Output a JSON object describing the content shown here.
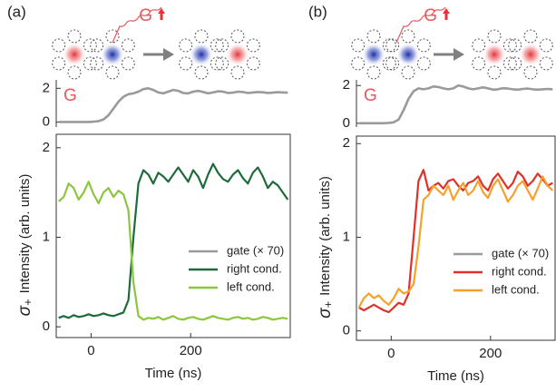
{
  "chart_data": [
    {
      "type": "line",
      "label": "(a)",
      "annotation": "G",
      "schematic_label": "G",
      "x": [
        -65,
        -55,
        -45,
        -35,
        -25,
        -15,
        -5,
        5,
        15,
        25,
        35,
        45,
        55,
        65,
        75,
        85,
        95,
        105,
        115,
        125,
        135,
        145,
        155,
        165,
        175,
        185,
        195,
        205,
        215,
        225,
        235,
        245,
        255,
        265,
        275,
        285,
        295,
        305,
        315,
        325,
        335,
        345,
        355,
        365,
        375,
        385,
        395
      ],
      "xlim": [
        -70,
        400
      ],
      "ylim": [
        -0.3,
        2.5
      ],
      "yticks": [
        0,
        2
      ],
      "series": [
        {
          "name": "gate (× 70)",
          "color": "#9a9a9a",
          "values": [
            0,
            0,
            0,
            0,
            0,
            0,
            0,
            0.02,
            0.05,
            0.15,
            0.4,
            0.8,
            1.2,
            1.5,
            1.65,
            1.7,
            1.8,
            1.95,
            2.0,
            1.9,
            1.75,
            1.7,
            1.8,
            1.9,
            1.85,
            1.72,
            1.7,
            1.8,
            1.85,
            1.78,
            1.7,
            1.75,
            1.82,
            1.8,
            1.72,
            1.74,
            1.8,
            1.78,
            1.72,
            1.75,
            1.78,
            1.76,
            1.72,
            1.74,
            1.77,
            1.75,
            1.74
          ]
        }
      ]
    },
    {
      "type": "line",
      "xlabel": "Time (ns)",
      "ylabel_symbol": "σ",
      "ylabel_subscript": "+",
      "ylabel": "Intensity (arb. units)",
      "x": [
        -65,
        -55,
        -45,
        -35,
        -25,
        -15,
        -5,
        5,
        15,
        25,
        35,
        45,
        55,
        65,
        75,
        85,
        95,
        105,
        115,
        125,
        135,
        145,
        155,
        165,
        175,
        185,
        195,
        205,
        215,
        225,
        235,
        245,
        255,
        265,
        275,
        285,
        295,
        305,
        315,
        325,
        335,
        345,
        355,
        365,
        375,
        385,
        395
      ],
      "xlim": [
        -70,
        400
      ],
      "xticks": [
        0,
        200
      ],
      "ylim": [
        -0.12,
        2.15
      ],
      "yticks": [
        0,
        1,
        2
      ],
      "legend": "lower right",
      "series": [
        {
          "name": "right cond.",
          "color": "#1e6b3a",
          "values": [
            0.1,
            0.12,
            0.1,
            0.13,
            0.11,
            0.12,
            0.14,
            0.12,
            0.13,
            0.15,
            0.13,
            0.12,
            0.14,
            0.16,
            0.3,
            1.0,
            1.6,
            1.75,
            1.7,
            1.6,
            1.72,
            1.68,
            1.62,
            1.7,
            1.78,
            1.7,
            1.62,
            1.75,
            1.68,
            1.55,
            1.7,
            1.82,
            1.72,
            1.65,
            1.62,
            1.7,
            1.75,
            1.66,
            1.6,
            1.72,
            1.78,
            1.68,
            1.55,
            1.62,
            1.58,
            1.5,
            1.42
          ]
        },
        {
          "name": "left cond.",
          "color": "#8cc63f",
          "values": [
            1.4,
            1.45,
            1.6,
            1.55,
            1.42,
            1.5,
            1.62,
            1.48,
            1.38,
            1.5,
            1.55,
            1.45,
            1.52,
            1.48,
            1.3,
            0.5,
            0.12,
            0.08,
            0.1,
            0.09,
            0.11,
            0.08,
            0.1,
            0.12,
            0.09,
            0.08,
            0.1,
            0.11,
            0.09,
            0.08,
            0.1,
            0.12,
            0.1,
            0.09,
            0.08,
            0.1,
            0.11,
            0.09,
            0.1,
            0.08,
            0.09,
            0.11,
            0.1,
            0.08,
            0.09,
            0.1,
            0.09
          ]
        }
      ]
    },
    {
      "type": "line",
      "label": "(b)",
      "annotation": "G",
      "schematic_label": "G",
      "x": [
        -65,
        -55,
        -45,
        -35,
        -25,
        -15,
        -5,
        5,
        15,
        25,
        35,
        45,
        55,
        65,
        75,
        85,
        95,
        105,
        115,
        125,
        135,
        145,
        155,
        165,
        175,
        185,
        195,
        205,
        215,
        225,
        235,
        245,
        255,
        265,
        275,
        285,
        295,
        305,
        315,
        325
      ],
      "xlim": [
        -70,
        330
      ],
      "ylim": [
        -0.2,
        2.3
      ],
      "yticks": [
        0,
        2
      ],
      "series": [
        {
          "name": "gate (× 70)",
          "color": "#9a9a9a",
          "values": [
            0,
            0,
            0,
            0,
            0,
            0,
            0.02,
            0.05,
            0.2,
            0.7,
            1.3,
            1.7,
            1.85,
            1.8,
            1.85,
            1.95,
            1.92,
            1.85,
            1.8,
            1.85,
            2.0,
            1.95,
            1.85,
            1.8,
            1.85,
            1.9,
            1.85,
            1.78,
            1.8,
            1.86,
            1.84,
            1.8,
            1.78,
            1.82,
            1.84,
            1.8,
            1.78,
            1.8,
            1.82,
            1.8
          ]
        }
      ]
    },
    {
      "type": "line",
      "xlabel": "Time (ns)",
      "ylabel_symbol": "σ",
      "ylabel_subscript": "+",
      "ylabel": "Intensity (arb. units)",
      "x": [
        -65,
        -55,
        -45,
        -35,
        -25,
        -15,
        -5,
        5,
        15,
        25,
        35,
        45,
        55,
        65,
        75,
        85,
        95,
        105,
        115,
        125,
        135,
        145,
        155,
        165,
        175,
        185,
        195,
        205,
        215,
        225,
        235,
        245,
        255,
        265,
        275,
        285,
        295,
        305,
        315,
        325
      ],
      "xlim": [
        -70,
        330
      ],
      "xticks": [
        0,
        200
      ],
      "ylim": [
        -0.1,
        2.08
      ],
      "yticks": [
        0,
        1,
        2
      ],
      "legend": "lower right",
      "series": [
        {
          "name": "right cond.",
          "color": "#e0302a",
          "values": [
            0.25,
            0.22,
            0.25,
            0.28,
            0.25,
            0.22,
            0.2,
            0.25,
            0.3,
            0.28,
            0.4,
            1.0,
            1.6,
            1.72,
            1.5,
            1.55,
            1.58,
            1.52,
            1.6,
            1.62,
            1.55,
            1.5,
            1.58,
            1.6,
            1.65,
            1.55,
            1.5,
            1.62,
            1.68,
            1.6,
            1.52,
            1.58,
            1.7,
            1.65,
            1.55,
            1.6,
            1.68,
            1.62,
            1.55,
            1.58
          ]
        },
        {
          "name": "left cond.",
          "color": "#f7a02a",
          "values": [
            0.25,
            0.35,
            0.4,
            0.35,
            0.38,
            0.32,
            0.28,
            0.35,
            0.45,
            0.4,
            0.42,
            0.5,
            0.9,
            1.4,
            1.45,
            1.55,
            1.5,
            1.45,
            1.55,
            1.4,
            1.5,
            1.58,
            1.45,
            1.5,
            1.6,
            1.48,
            1.42,
            1.55,
            1.62,
            1.5,
            1.38,
            1.45,
            1.55,
            1.6,
            1.5,
            1.4,
            1.52,
            1.65,
            1.55,
            1.5
          ]
        }
      ]
    }
  ]
}
